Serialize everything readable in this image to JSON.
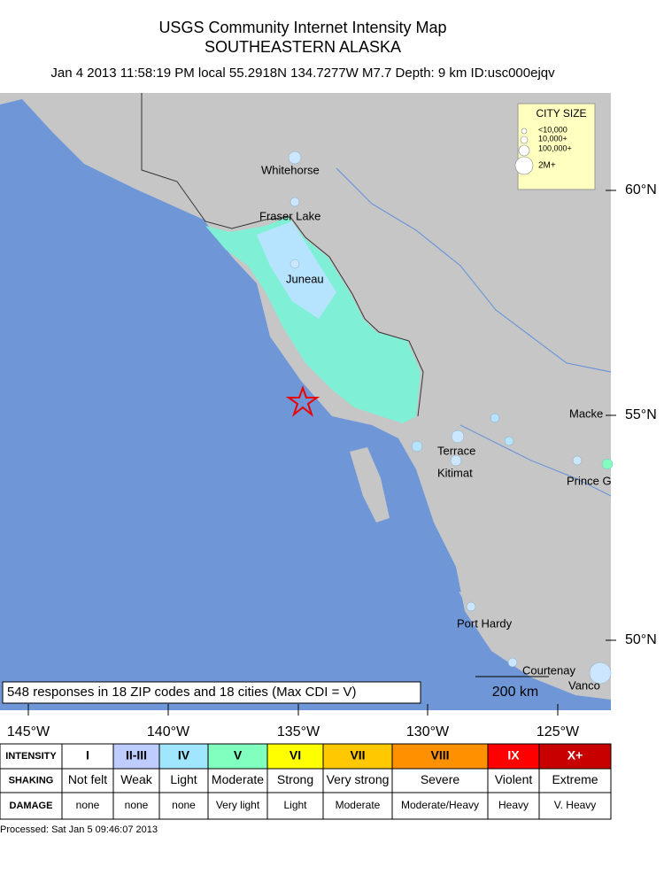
{
  "header": {
    "title": "USGS Community Internet Intensity Map",
    "region": "SOUTHEASTERN ALASKA",
    "event": "Jan 4 2013 11:58:19 PM local 55.2918N 134.7277W M7.7 Depth: 9 km ID:usc000ejqv"
  },
  "map": {
    "cities": [
      "Whitehorse",
      "Fraser Lake",
      "Juneau",
      "Terrace",
      "Kitimat",
      "Port Hardy",
      "Courtenay",
      "Vanco",
      "Macke",
      "Prince G"
    ],
    "lat_labels": [
      "60°N",
      "55°N",
      "50°N"
    ],
    "lon_labels": [
      "145°W",
      "140°W",
      "135°W",
      "130°W",
      "125°W"
    ],
    "city_size_legend": {
      "title": "CITY SIZE",
      "sizes": [
        "<10,000",
        "10,000+",
        "100,000+",
        "2M+"
      ]
    },
    "responses": "548 responses in 18 ZIP codes and 18 cities (Max CDI = V)",
    "scale": "200 km"
  },
  "legend_table": {
    "row_headers": [
      "INTENSITY",
      "SHAKING",
      "DAMAGE"
    ],
    "intensity": [
      "I",
      "II-III",
      "IV",
      "V",
      "VI",
      "VII",
      "VIII",
      "IX",
      "X+"
    ],
    "shaking": [
      "Not felt",
      "Weak",
      "Light",
      "Moderate",
      "Strong",
      "Very strong",
      "Severe",
      "Violent",
      "Extreme"
    ],
    "damage": [
      "none",
      "none",
      "none",
      "Very light",
      "Light",
      "Moderate",
      "Moderate/Heavy",
      "Heavy",
      "V. Heavy"
    ]
  },
  "footer": "Processed: Sat Jan  5 09:46:07 2013"
}
